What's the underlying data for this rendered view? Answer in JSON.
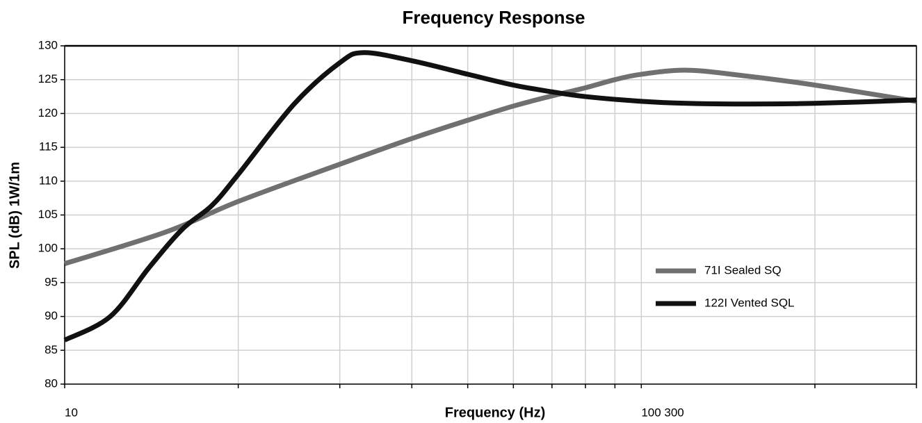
{
  "chart_data": {
    "type": "line",
    "title": "Frequency Response",
    "x_label": "Frequency (Hz)",
    "y_label": "SPL (dB) 1W/1m",
    "x_scale": "log",
    "grid": true,
    "legend": "right",
    "xlim": [
      10,
      300
    ],
    "xticks": [
      10,
      {
        "value": 100,
        "label": "100 300"
      }
    ],
    "xminor": [
      20,
      30,
      40,
      50,
      60,
      70,
      80,
      90,
      200,
      300
    ],
    "ylim": [
      80,
      130
    ],
    "yticks": [
      80,
      85,
      90,
      95,
      100,
      105,
      110,
      115,
      120,
      125,
      130
    ],
    "series": [
      {
        "name": "71I Sealed SQ",
        "color": "#707070",
        "x": [
          10,
          15,
          20,
          30,
          40,
          50,
          60,
          70,
          80,
          90,
          100,
          120,
          150,
          200,
          300
        ],
        "values": [
          97.8,
          102.5,
          107,
          112.5,
          116.3,
          119,
          121.1,
          122.6,
          123.8,
          125,
          125.8,
          126.4,
          125.6,
          124.2,
          121.8
        ]
      },
      {
        "name": "122I Vented SQL",
        "color": "#111111",
        "x": [
          10,
          12,
          14,
          16,
          18,
          20,
          25,
          30,
          33,
          40,
          50,
          60,
          70,
          80,
          100,
          120,
          150,
          200,
          300
        ],
        "values": [
          86.5,
          90,
          97.2,
          102.9,
          106.4,
          111,
          121.4,
          127.5,
          129,
          127.8,
          125.8,
          124.2,
          123.2,
          122.5,
          121.8,
          121.5,
          121.4,
          121.5,
          122
        ]
      }
    ]
  }
}
